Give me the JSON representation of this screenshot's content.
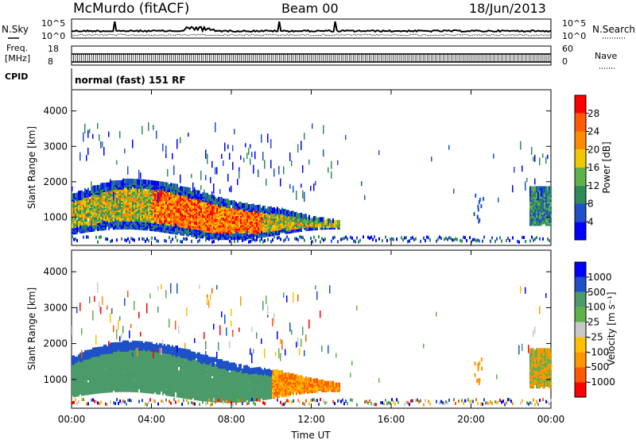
{
  "header": {
    "station": "McMurdo (fitACF)",
    "beam": "Beam 00",
    "date": "18/Jun/2013"
  },
  "noise_panel": {
    "left_label": "N.Sky",
    "right_label": "N.Search",
    "left_ticks": [
      "10^5",
      "10^0"
    ],
    "right_ticks": [
      "10^5",
      "10^0"
    ]
  },
  "freq_panel": {
    "left_label_1": "Freq.",
    "left_label_2": "[MHz]",
    "right_label": "Nave",
    "left_ticks": [
      "18",
      "8"
    ],
    "right_ticks": [
      "60",
      "0"
    ]
  },
  "cpid": {
    "label": "CPID",
    "value": "normal (fast) 151 RF"
  },
  "colors": {
    "power": [
      "#0000ff",
      "#1e50c8",
      "#2e8b57",
      "#5fb24a",
      "#f0c800",
      "#ff8c00",
      "#ff5a00",
      "#ff0000"
    ],
    "velocity": [
      "#ff0000",
      "#ff5a00",
      "#ff9600",
      "#ffc000",
      "#c8c8c8",
      "#5fb24a",
      "#4a9a6a",
      "#1e50c8",
      "#0000ff"
    ]
  },
  "chart_data": [
    {
      "type": "heatmap",
      "name": "power",
      "ylabel": "Slant Range [km]",
      "xlabel": "",
      "yticks": [
        "1000",
        "2000",
        "3000",
        "4000"
      ],
      "ylim": [
        200,
        4600
      ],
      "xlim": [
        0,
        24
      ],
      "colorbar": {
        "label": "Power [dB]",
        "ticks": [
          "4",
          "8",
          "12",
          "16",
          "20",
          "24",
          "28"
        ]
      },
      "description_blobs": [
        {
          "t0": 0.0,
          "t1": 13.5,
          "r0": 550,
          "r1": 1650,
          "level": "high"
        },
        {
          "t0": 23.0,
          "t1": 24.0,
          "r0": 800,
          "r1": 1700,
          "level": "mid"
        }
      ]
    },
    {
      "type": "heatmap",
      "name": "velocity",
      "ylabel": "Slant Range [km]",
      "xlabel": "Time UT",
      "yticks": [
        "1000",
        "2000",
        "3000",
        "4000"
      ],
      "ylim": [
        200,
        4600
      ],
      "xlim": [
        0,
        24
      ],
      "xticks": [
        "00:00",
        "04:00",
        "08:00",
        "12:00",
        "16:00",
        "20:00",
        "00:00"
      ],
      "colorbar": {
        "label": "Velocity [m s⁻¹]",
        "ticks": [
          "1000",
          "500",
          "100",
          "25",
          "-25",
          "-100",
          "-500",
          "-1000"
        ]
      }
    }
  ]
}
